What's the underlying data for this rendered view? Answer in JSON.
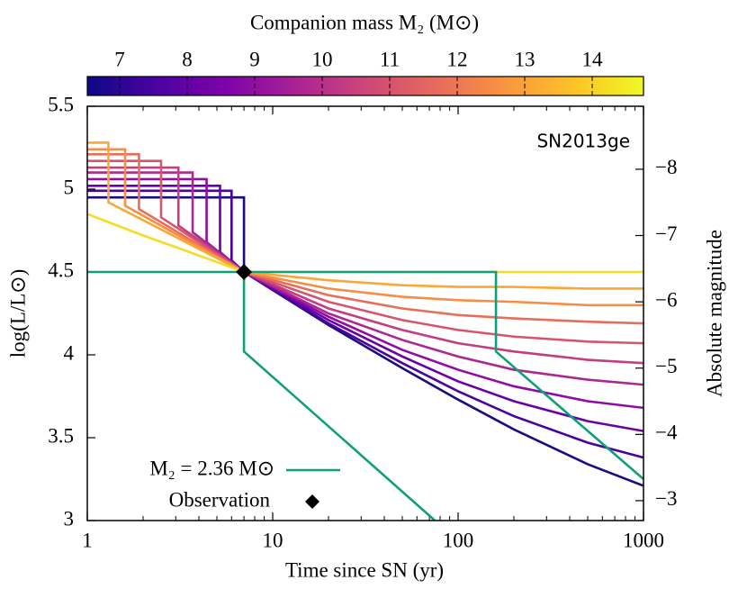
{
  "chart_data": {
    "type": "line",
    "colorbar": {
      "label": "Companion mass M₂ (M⊙)",
      "lim": [
        6.52,
        14.76
      ],
      "ticks": [
        7,
        8,
        9,
        10,
        11,
        12,
        13,
        14
      ],
      "colormap": [
        "#0d0887",
        "#4c02a1",
        "#7e03a8",
        "#a92395",
        "#cc4778",
        "#e56b5d",
        "#f89441",
        "#fdc328",
        "#f0f921"
      ]
    },
    "annotation": "SN2013ge",
    "x_label": "Time since SN (yr)",
    "y_label": "log(L/L⊙)",
    "y2_label": "Absolute magnitude",
    "log_x": true,
    "xlim": [
      1,
      1000
    ],
    "xticks": [
      1,
      10,
      100,
      1000
    ],
    "xticks_minor": [
      2,
      3,
      4,
      5,
      6,
      7,
      8,
      9,
      20,
      30,
      40,
      50,
      60,
      70,
      80,
      90,
      200,
      300,
      400,
      500,
      600,
      700,
      800,
      900
    ],
    "ylim": [
      3,
      5.5
    ],
    "yticks": [
      3,
      3.5,
      4,
      4.5,
      5,
      5.5
    ],
    "y2lim": [
      -8.95,
      -2.7
    ],
    "y2ticks": [
      {
        "value": -8,
        "label": "−8"
      },
      {
        "value": -7,
        "label": "−7"
      },
      {
        "value": -6,
        "label": "−6"
      },
      {
        "value": -5,
        "label": "−5"
      },
      {
        "value": -4,
        "label": "−4"
      },
      {
        "value": -3,
        "label": "−3"
      }
    ],
    "series": [
      {
        "name": "M₂ = 2.36 M⊙",
        "color": "#0f9f7a",
        "x": [
          1,
          7,
          7,
          75,
          7,
          7,
          160,
          160,
          1000
        ],
        "values": [
          4.5,
          4.5,
          4.02,
          3.0,
          null,
          4.5,
          4.5,
          4.02,
          3.25
        ]
      },
      {
        "color": "#1a0c82",
        "x": [
          1,
          7,
          7,
          20,
          50,
          100,
          200,
          500,
          1000
        ],
        "values": [
          4.95,
          4.95,
          4.5,
          4.18,
          3.92,
          3.73,
          3.55,
          3.34,
          3.21
        ]
      },
      {
        "color": "#4a02a0",
        "x": [
          1,
          6,
          6,
          7,
          20,
          50,
          100,
          200,
          500,
          1000
        ],
        "values": [
          4.99,
          4.99,
          4.57,
          4.5,
          4.19,
          3.95,
          3.78,
          3.63,
          3.47,
          3.38
        ]
      },
      {
        "color": "#6a00a8",
        "x": [
          1,
          5.2,
          5.2,
          7,
          20,
          50,
          100,
          200,
          500,
          1000
        ],
        "values": [
          5.02,
          5.02,
          4.62,
          4.5,
          4.21,
          3.99,
          3.84,
          3.72,
          3.6,
          3.54
        ]
      },
      {
        "color": "#8f0da4",
        "x": [
          1,
          4.4,
          4.4,
          7,
          20,
          50,
          100,
          200,
          500,
          1000
        ],
        "values": [
          5.06,
          5.06,
          4.68,
          4.5,
          4.23,
          4.03,
          3.91,
          3.81,
          3.72,
          3.68
        ]
      },
      {
        "color": "#ac2694",
        "x": [
          1,
          3.7,
          3.7,
          7,
          20,
          50,
          100,
          200,
          500,
          1000
        ],
        "values": [
          5.1,
          5.1,
          4.74,
          4.5,
          4.25,
          4.09,
          3.99,
          3.91,
          3.85,
          3.82
        ]
      },
      {
        "color": "#c33d80",
        "x": [
          1,
          3.1,
          3.1,
          7,
          20,
          50,
          100,
          200,
          500,
          1000
        ],
        "values": [
          5.13,
          5.13,
          4.78,
          4.5,
          4.28,
          4.15,
          4.07,
          4.02,
          3.97,
          3.95
        ]
      },
      {
        "color": "#d6556d",
        "x": [
          1,
          2.5,
          2.5,
          7,
          20,
          50,
          100,
          200,
          500,
          1000
        ],
        "values": [
          5.17,
          5.17,
          4.83,
          4.5,
          4.32,
          4.21,
          4.15,
          4.11,
          4.08,
          4.07
        ]
      },
      {
        "color": "#e76f5a",
        "x": [
          1,
          1.9,
          1.9,
          7,
          20,
          50,
          100,
          200,
          500,
          1000
        ],
        "values": [
          5.21,
          5.21,
          4.88,
          4.5,
          4.36,
          4.28,
          4.24,
          4.22,
          4.2,
          4.19
        ]
      },
      {
        "color": "#f68d45",
        "x": [
          1,
          1.6,
          1.6,
          7,
          20,
          50,
          100,
          200,
          500,
          1000
        ],
        "values": [
          5.24,
          5.24,
          4.9,
          4.5,
          4.4,
          4.35,
          4.33,
          4.32,
          4.3,
          4.3
        ]
      },
      {
        "color": "#fca636",
        "x": [
          1,
          1.3,
          1.3,
          7,
          20,
          50,
          100,
          200,
          500,
          1000
        ],
        "values": [
          5.28,
          5.28,
          4.92,
          4.5,
          4.45,
          4.42,
          4.41,
          4.41,
          4.4,
          4.4
        ]
      },
      {
        "color": "#f5dd26",
        "x": [
          1,
          2,
          3,
          7,
          1000
        ],
        "values": [
          4.85,
          4.72,
          4.65,
          4.5,
          4.5
        ]
      }
    ],
    "observation": {
      "name": "Observation",
      "x": 7,
      "y": 4.5,
      "color": "#000000"
    }
  }
}
